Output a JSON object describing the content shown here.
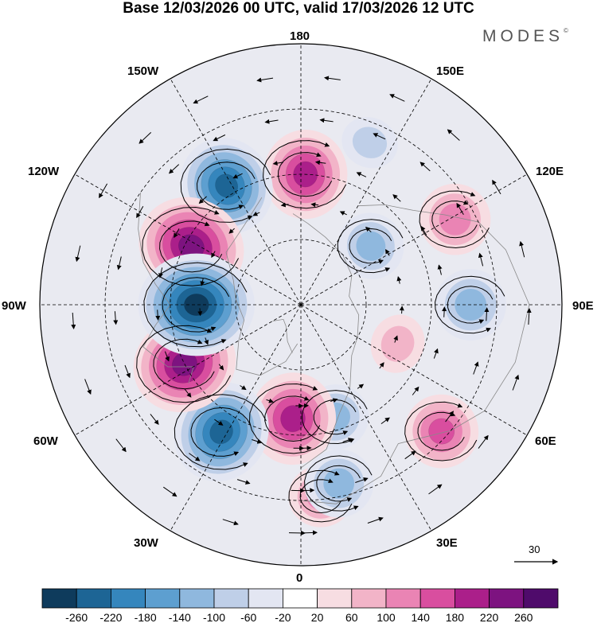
{
  "title": "Base 12/03/2026 00 UTC, valid 17/03/2026 12 UTC",
  "brand": "MODES",
  "brand_mark": "©",
  "longitude_labels": {
    "top": "180",
    "bottom": "0",
    "left": "90W",
    "right": "90E",
    "upper_left_1": "150W",
    "upper_left_2": "120W",
    "upper_right_1": "150E",
    "upper_right_2": "120E",
    "lower_left_1": "60W",
    "lower_left_2": "30W",
    "lower_right_1": "60E",
    "lower_right_2": "30E"
  },
  "vector_reference": "30",
  "colorbar": {
    "colors": [
      "#0e3b5c",
      "#1d6595",
      "#3586bd",
      "#5d9fd0",
      "#8fb8de",
      "#bfcfe8",
      "#e3e6f2",
      "#ffffff",
      "#f7dde2",
      "#f2b4c8",
      "#ea84b4",
      "#d94e9f",
      "#ab1f8a",
      "#7d1380",
      "#4f0b6b"
    ],
    "tick_labels": [
      "-260",
      "-220",
      "-180",
      "-140",
      "-100",
      "-60",
      "-20",
      "20",
      "60",
      "100",
      "140",
      "180",
      "220",
      "260"
    ]
  },
  "anomaly_centers": [
    {
      "lon_deg": 270,
      "lat_deg": 58,
      "value": -280,
      "name": "negative-90W"
    },
    {
      "lon_deg": 242,
      "lat_deg": 52,
      "value": 250,
      "name": "positive-120W"
    },
    {
      "lon_deg": 297,
      "lat_deg": 50,
      "value": 240,
      "name": "positive-60W"
    },
    {
      "lon_deg": 212,
      "lat_deg": 47,
      "value": -220,
      "name": "negative-150W"
    },
    {
      "lon_deg": 328,
      "lat_deg": 44,
      "value": -230,
      "name": "negative-30W"
    },
    {
      "lon_deg": 178,
      "lat_deg": 50,
      "value": 190,
      "name": "positive-180"
    },
    {
      "lon_deg": 356,
      "lat_deg": 55,
      "value": 200,
      "name": "positive-0"
    },
    {
      "lon_deg": 119,
      "lat_deg": 36,
      "value": 130,
      "name": "positive-120E"
    },
    {
      "lon_deg": 90,
      "lat_deg": 38,
      "value": -130,
      "name": "negative-90E"
    },
    {
      "lon_deg": 130,
      "lat_deg": 62,
      "value": -110,
      "name": "negative-asia"
    },
    {
      "lon_deg": 48,
      "lat_deg": 32,
      "value": 140,
      "name": "positive-50E"
    },
    {
      "lon_deg": 17,
      "lat_deg": 54,
      "value": -110,
      "name": "negative-europe"
    },
    {
      "lon_deg": 12,
      "lat_deg": 34,
      "value": -120,
      "name": "negative-africa"
    },
    {
      "lon_deg": 6,
      "lat_deg": 31,
      "value": 100,
      "name": "positive-sahara"
    },
    {
      "lon_deg": 68,
      "lat_deg": 58,
      "value": 70,
      "name": "positive-siberia"
    },
    {
      "lon_deg": 157,
      "lat_deg": 36,
      "value": -60,
      "name": "negative-pacific"
    }
  ]
}
